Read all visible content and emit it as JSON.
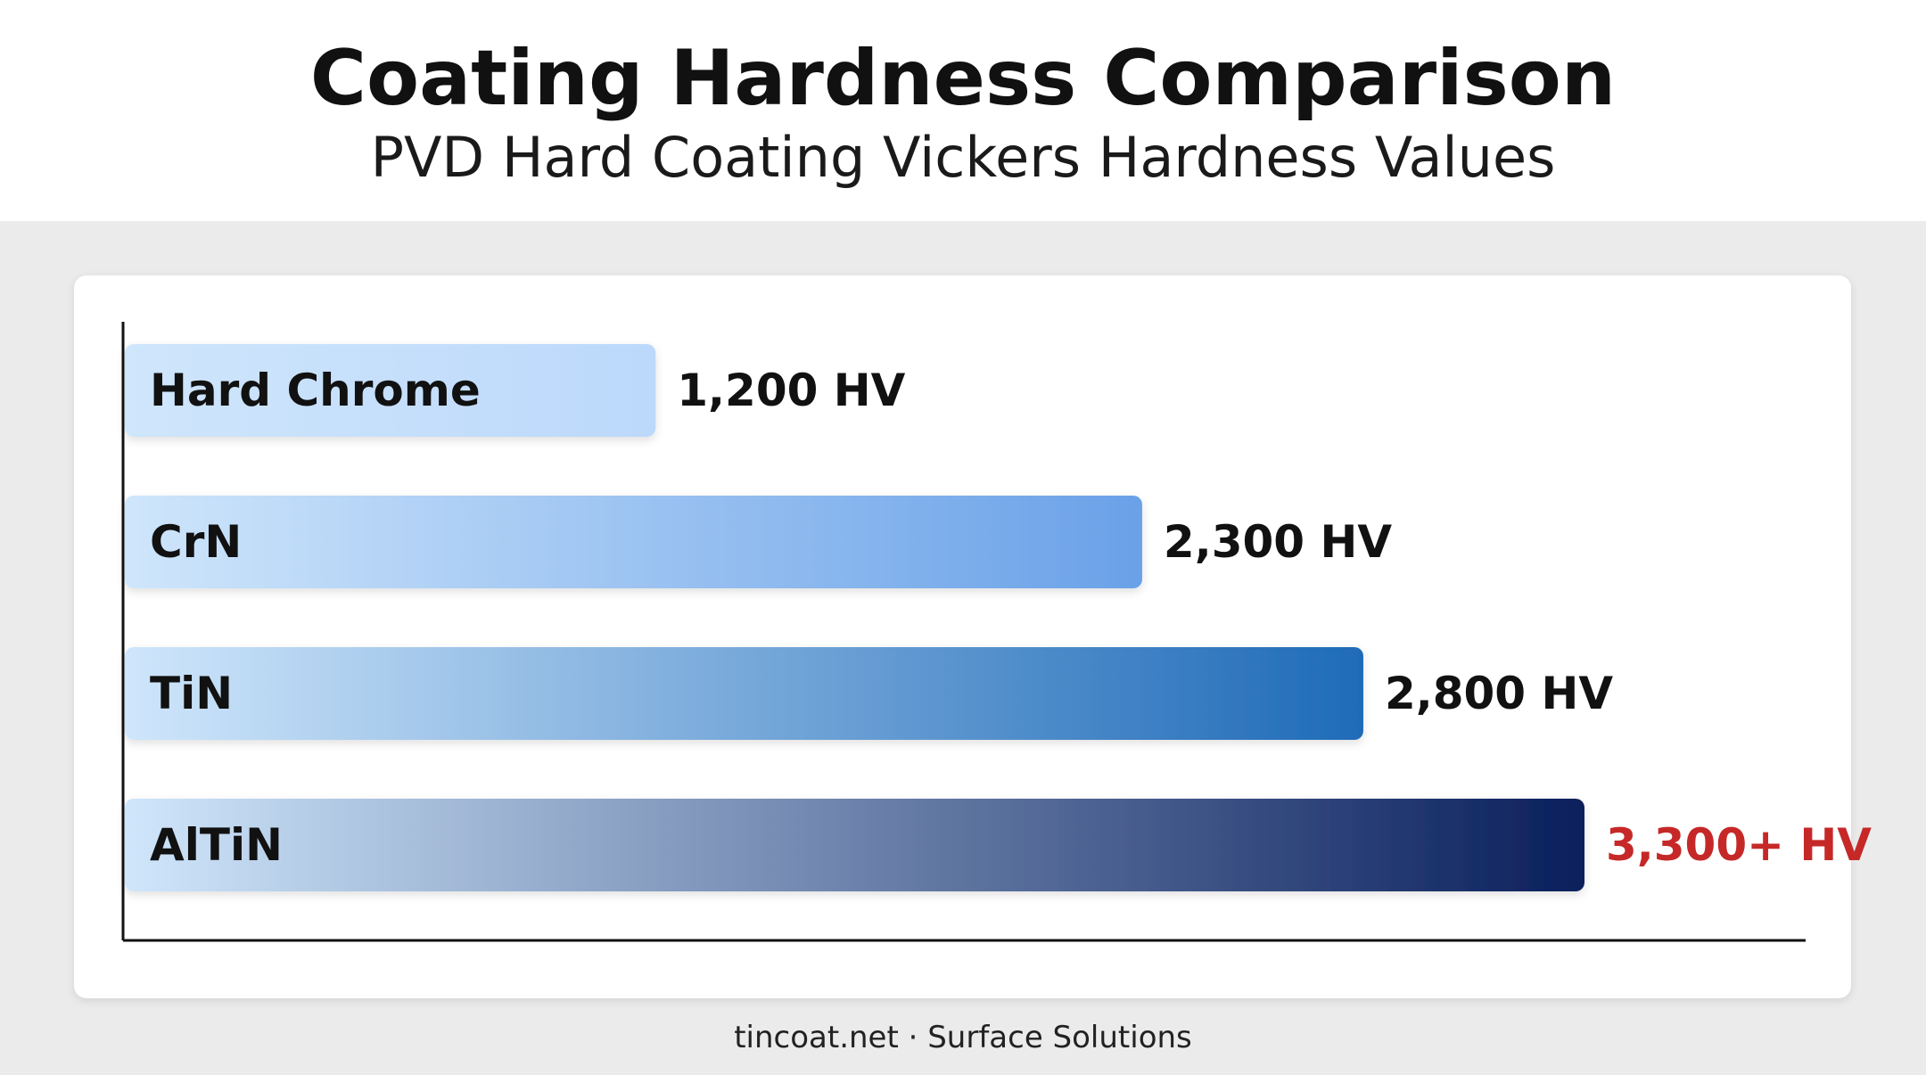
{
  "header": {
    "title": "Coating Hardness Comparison",
    "subtitle": "PVD Hard Coating Vickers Hardness Values"
  },
  "footer": {
    "text": "tincoat.net · Surface Solutions"
  },
  "chart_data": {
    "type": "bar",
    "orientation": "horizontal",
    "categories": [
      "Hard Chrome",
      "CrN",
      "TiN",
      "AlTiN"
    ],
    "values": [
      1200,
      2300,
      2800,
      3300
    ],
    "value_labels": [
      "1,200 HV",
      "2,300 HV",
      "2,800 HV",
      "3,300+ HV"
    ],
    "unit": "HV",
    "xlim": [
      0,
      3800
    ],
    "grid": false,
    "legend": "none",
    "colors": {
      "bar_start": "#cfe6fb",
      "bar_ends": [
        "#bcd8fb",
        "#6aa1e8",
        "#1f6bb8",
        "#0a1f5c"
      ],
      "label": "#111111",
      "highlight_label": "#c62828"
    },
    "highlight_index": 3
  }
}
